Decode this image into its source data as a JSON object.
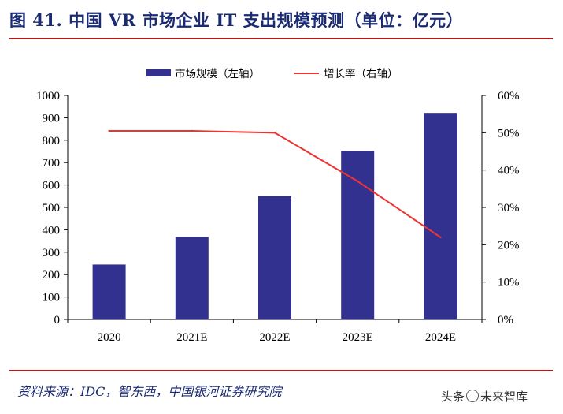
{
  "header": {
    "title": "图 41. 中国 VR 市场企业 IT 支出规模预测（单位：亿元）"
  },
  "footer": {
    "source": "资料来源：IDC，智东西，中国银河证券研究院",
    "watermark_a": "头条",
    "watermark_b": "未来智库"
  },
  "colors": {
    "bar": "#33318f",
    "line": "#ee3333",
    "rule": "#b21a1a",
    "title": "#1a2b74",
    "axis": "#000000"
  },
  "chart_data": {
    "type": "bar",
    "title": "图 41. 中国 VR 市场企业 IT 支出规模预测（单位：亿元）",
    "categories": [
      "2020",
      "2021E",
      "2022E",
      "2023E",
      "2024E"
    ],
    "series": [
      {
        "name": "市场规模（左轴）",
        "type": "bar",
        "axis": "left",
        "values": [
          245,
          368,
          550,
          752,
          922
        ]
      },
      {
        "name": "增长率（右轴）",
        "type": "line",
        "axis": "right",
        "values": [
          50.5,
          50.5,
          50.0,
          37.0,
          22.0
        ]
      }
    ],
    "y_left": {
      "min": 0,
      "max": 1000,
      "step": 100,
      "ticks": [
        "0",
        "100",
        "200",
        "300",
        "400",
        "500",
        "600",
        "700",
        "800",
        "900",
        "1000"
      ]
    },
    "y_right": {
      "min": 0,
      "max": 60,
      "step": 10,
      "ticks": [
        "0%",
        "10%",
        "20%",
        "30%",
        "40%",
        "50%",
        "60%"
      ]
    },
    "legend_position": "top",
    "grid": false
  }
}
